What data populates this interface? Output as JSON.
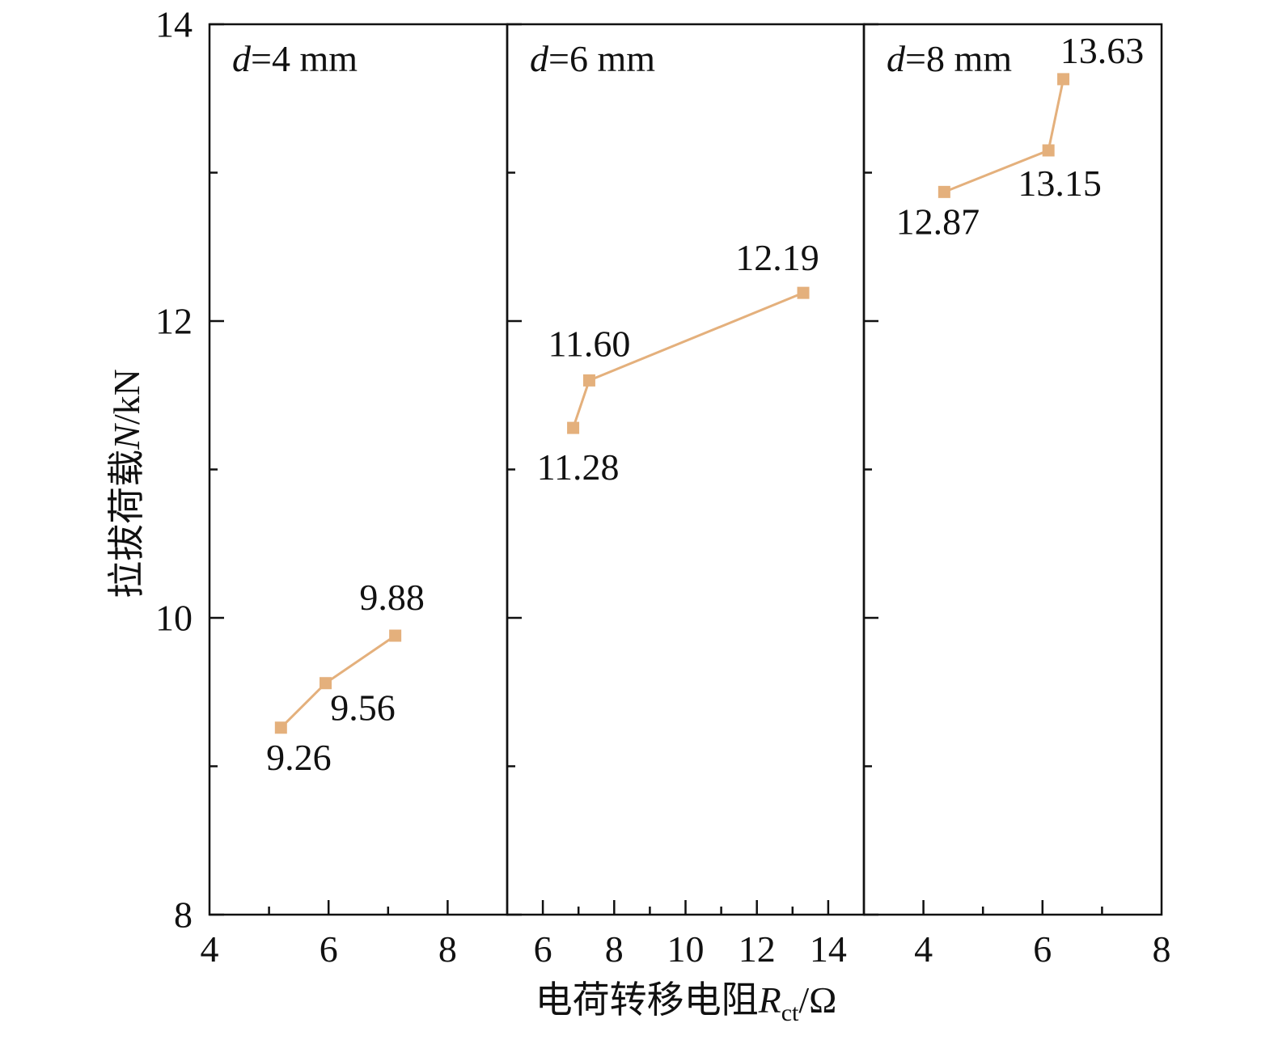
{
  "chart_data": {
    "type": "line",
    "ylabel_zh": "拉拔荷载",
    "ylabel_symbol": "N",
    "ylabel_unit": "/kN",
    "xlabel_zh": "电荷转移电阻",
    "xlabel_symbol": "R",
    "xlabel_sub": "ct",
    "xlabel_unit": "/Ω",
    "ylim": [
      8,
      14
    ],
    "yticks": [
      8,
      10,
      12,
      14
    ],
    "series_color": "#e4b07c",
    "panels": [
      {
        "label_var": "d",
        "label_rest": "=4 mm",
        "xlim": [
          4,
          9
        ],
        "xticks": [
          4,
          6,
          8
        ],
        "points": [
          {
            "x": 5.2,
            "y": 9.26,
            "label": "9.26"
          },
          {
            "x": 5.95,
            "y": 9.56,
            "label": "9.56"
          },
          {
            "x": 7.12,
            "y": 9.88,
            "label": "9.88"
          }
        ]
      },
      {
        "label_var": "d",
        "label_rest": "=6 mm",
        "xlim": [
          5,
          15
        ],
        "xticks": [
          6,
          8,
          10,
          12,
          14
        ],
        "points": [
          {
            "x": 6.85,
            "y": 11.28,
            "label": "11.28"
          },
          {
            "x": 7.3,
            "y": 11.6,
            "label": "11.60"
          },
          {
            "x": 13.3,
            "y": 12.19,
            "label": "12.19"
          }
        ]
      },
      {
        "label_var": "d",
        "label_rest": "=8 mm",
        "xlim": [
          3,
          8
        ],
        "xticks": [
          4,
          6,
          8
        ],
        "points": [
          {
            "x": 4.35,
            "y": 12.87,
            "label": "12.87"
          },
          {
            "x": 6.1,
            "y": 13.15,
            "label": "13.15"
          },
          {
            "x": 6.35,
            "y": 13.63,
            "label": "13.63"
          }
        ]
      }
    ]
  }
}
